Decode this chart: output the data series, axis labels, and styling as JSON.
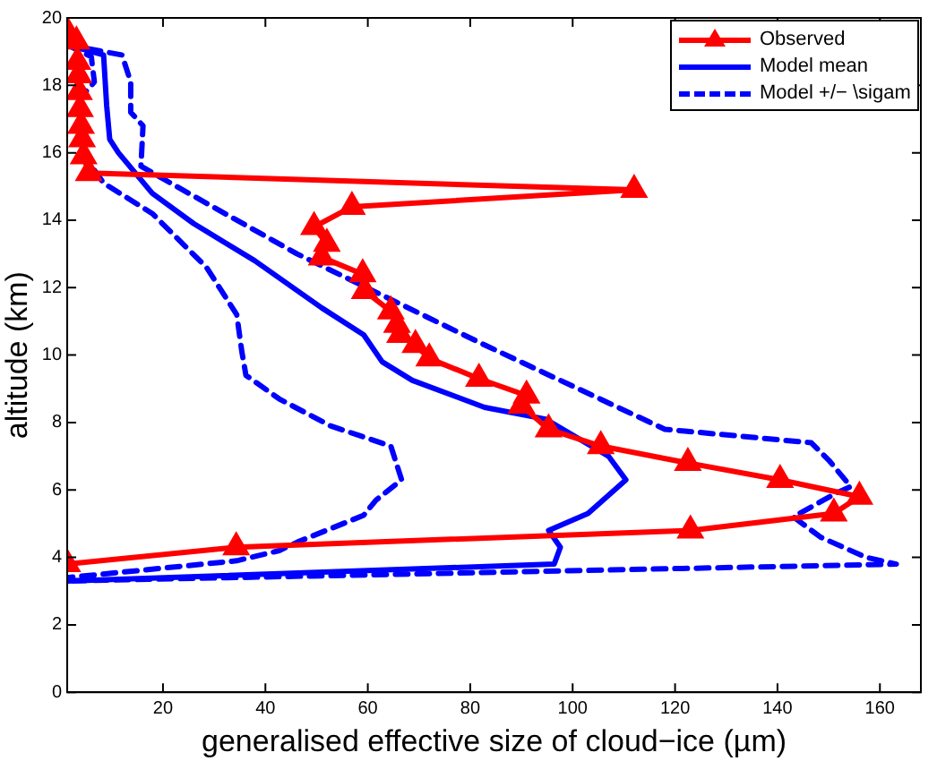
{
  "chart_data": {
    "type": "line",
    "xlabel": "generalised effective size of cloud−ice (µm)",
    "ylabel": "altitude (km)",
    "xlim": [
      1.3,
      168
    ],
    "xticks": [
      20,
      40,
      60,
      80,
      100,
      120,
      140,
      160
    ],
    "ylim": [
      0,
      20
    ],
    "yticks": [
      0,
      2,
      4,
      6,
      8,
      10,
      12,
      14,
      16,
      18,
      20
    ],
    "grid": false,
    "legend": "top right",
    "series": [
      {
        "name": "Observed",
        "color": "#ff0000",
        "marker": "triangle",
        "line_style": "solid",
        "x": [
          1.3,
          3.1,
          3.3,
          3.5,
          3.6,
          3.8,
          4,
          4.2,
          4.5,
          5.5,
          112,
          56.9,
          49.5,
          52,
          51,
          59,
          59.4,
          64.5,
          65.7,
          66.3,
          69.3,
          72,
          81.7,
          91,
          90,
          95.3,
          105.5,
          122.5,
          140.5,
          156,
          151,
          123,
          34.3,
          1.3
        ],
        "values": [
          19.6,
          19.3,
          18.7,
          18.3,
          17.8,
          17.3,
          16.8,
          16.4,
          15.9,
          15.4,
          14.9,
          14.4,
          13.8,
          13.3,
          12.9,
          12.4,
          11.9,
          11.3,
          10.9,
          10.6,
          10.3,
          9.9,
          9.3,
          8.8,
          8.5,
          7.8,
          7.3,
          6.8,
          6.3,
          5.8,
          5.3,
          4.8,
          4.3,
          3.8
        ]
      },
      {
        "name": "Model mean",
        "color": "#0000ff",
        "marker": "none",
        "line_style": "solid",
        "x": [
          1.3,
          8.4,
          9,
          9.6,
          11.3,
          17.9,
          26,
          37.9,
          51,
          59.2,
          62.8,
          68.7,
          82.8,
          94.7,
          107,
          110.4,
          103,
          95.3,
          97.6,
          96.4,
          1.3
        ],
        "values": [
          19.2,
          18.9,
          17.4,
          16.4,
          16,
          14.8,
          13.9,
          12.8,
          11.4,
          10.6,
          9.8,
          9.25,
          8.45,
          8.1,
          7,
          6.3,
          5.3,
          4.8,
          4.3,
          3.8,
          3.3
        ]
      },
      {
        "name": "Model +/− \\sigam",
        "color": "#0000ff",
        "marker": "none",
        "line_style": "dashed",
        "x": [
          1.3,
          12,
          13.7,
          13.7,
          16.1,
          15.7,
          25,
          46.2,
          82.8,
          118,
          146.6,
          150.2,
          154.3,
          151.4,
          143.1,
          148.4,
          157.3,
          163.2,
          1.3
        ],
        "values": [
          19.2,
          18.9,
          18.1,
          17.2,
          16.8,
          15.6,
          14.8,
          13,
          10.3,
          7.8,
          7.4,
          6.85,
          6.1,
          5.9,
          5.2,
          4.6,
          4,
          3.8,
          3.3
        ]
      },
      {
        "color": "#0000ff",
        "marker": "none",
        "line_style": "dashed",
        "x": [
          1.3,
          6,
          6.6,
          3.7,
          4.2,
          8.4,
          17.9,
          28.5,
          34.4,
          35.4,
          36.2,
          42.7,
          52.7,
          64.5,
          66.6,
          61.6,
          59.2,
          46.2,
          42.7,
          34.4,
          1.3
        ],
        "values": [
          19.2,
          18.85,
          18.1,
          17.6,
          16,
          15.1,
          14.2,
          12.6,
          11.2,
          10.1,
          9.4,
          8.7,
          7.9,
          7.3,
          6.3,
          5.7,
          5.25,
          4.45,
          4.2,
          3.9,
          3.4
        ]
      }
    ]
  }
}
